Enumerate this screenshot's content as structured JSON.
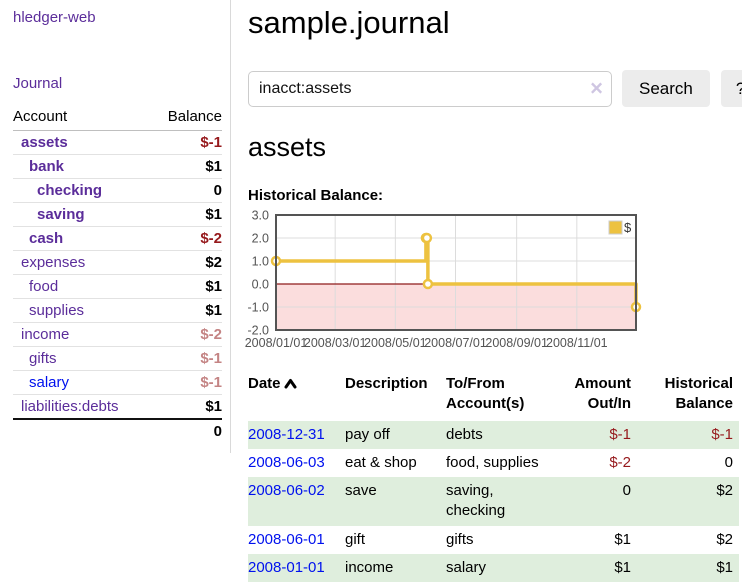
{
  "sidebar": {
    "brand": "hledger-web",
    "nav": {
      "journal": "Journal"
    },
    "accounts_table": {
      "headers": {
        "account": "Account",
        "balance": "Balance"
      },
      "rows": [
        {
          "name": "assets",
          "balance": "$-1"
        },
        {
          "name": "bank",
          "balance": "$1"
        },
        {
          "name": "checking",
          "balance": "0"
        },
        {
          "name": "saving",
          "balance": "$1"
        },
        {
          "name": "cash",
          "balance": "$-2"
        },
        {
          "name": "expenses",
          "balance": "$2"
        },
        {
          "name": "food",
          "balance": "$1"
        },
        {
          "name": "supplies",
          "balance": "$1"
        },
        {
          "name": "income",
          "balance": "$-2"
        },
        {
          "name": "gifts",
          "balance": "$-1"
        },
        {
          "name": "salary",
          "balance": "$-1"
        },
        {
          "name": "liabilities:debts",
          "balance": "$1"
        }
      ],
      "total": "0"
    }
  },
  "header": {
    "title": "sample.journal"
  },
  "search": {
    "value": "inacct:assets",
    "clear_icon": "×",
    "button_label": "Search",
    "help_label": "?"
  },
  "account_page": {
    "heading": "assets",
    "chart_label": "Historical Balance:"
  },
  "chart_data": {
    "type": "line",
    "title": "Historical Balance",
    "step": true,
    "x_range": [
      "2008-01-01",
      "2008-12-31"
    ],
    "ylim": [
      -2.0,
      3.0
    ],
    "x_ticks": [
      "2008/01/01",
      "2008/03/01",
      "2008/05/01",
      "2008/07/01",
      "2008/09/01",
      "2008/11/01"
    ],
    "y_ticks": [
      3.0,
      2.0,
      1.0,
      0.0,
      -1.0,
      -2.0
    ],
    "grid": true,
    "legend": {
      "label": "$",
      "position": "top-right"
    },
    "colors": {
      "line": "#edc240",
      "marker_fill": "#ffffff",
      "negative_region": "#fbdddd",
      "zero_line": "#8e1b1b",
      "gridline": "#dcdcdc",
      "border": "#545454",
      "tick_text": "#545454"
    },
    "series": [
      {
        "name": "$",
        "points": [
          [
            "2008-01-01",
            1
          ],
          [
            "2008-06-01",
            2
          ],
          [
            "2008-06-02",
            2
          ],
          [
            "2008-06-03",
            0
          ],
          [
            "2008-12-31",
            -1
          ]
        ]
      }
    ]
  },
  "transactions": {
    "columns": [
      "Date",
      "Description",
      "To/From Account(s)",
      "Amount Out/In",
      "Historical Balance"
    ],
    "sort": {
      "column": "Date",
      "direction": "ascending"
    },
    "rows": [
      {
        "date": "2008-12-31",
        "description": "pay off",
        "accounts": "debts",
        "amount": "$-1",
        "balance": "$-1"
      },
      {
        "date": "2008-06-03",
        "description": "eat & shop",
        "accounts": "food, supplies",
        "amount": "$-2",
        "balance": "0"
      },
      {
        "date": "2008-06-02",
        "description": "save",
        "accounts": "saving, checking",
        "amount": "0",
        "balance": "$2"
      },
      {
        "date": "2008-06-01",
        "description": "gift",
        "accounts": "gifts",
        "amount": "$1",
        "balance": "$2"
      },
      {
        "date": "2008-01-01",
        "description": "income",
        "accounts": "salary",
        "amount": "$1",
        "balance": "$1"
      }
    ]
  }
}
